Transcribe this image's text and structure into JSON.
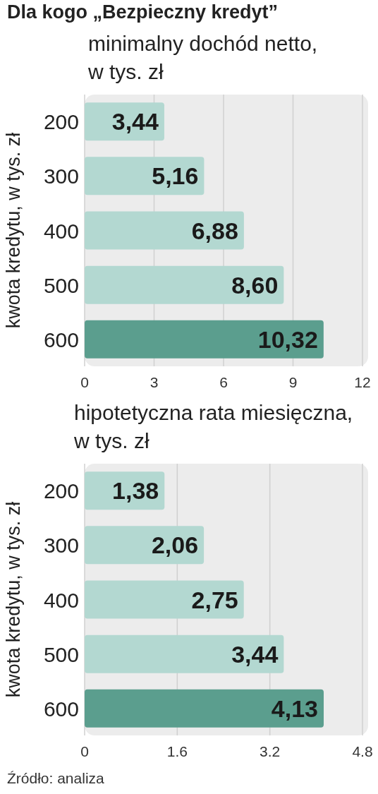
{
  "chart_data": [
    {
      "type": "bar",
      "orientation": "horizontal",
      "title": "Dla kogo „Bezpieczny kredyt”",
      "subtitle": "minimalny dochód netto,\nw tys. zł",
      "ylabel": "kwota kredytu, w tys. zł",
      "categories": [
        "200",
        "300",
        "400",
        "500",
        "600"
      ],
      "values": [
        3.44,
        5.16,
        6.88,
        8.6,
        10.32
      ],
      "value_labels": [
        "3,44",
        "5,16",
        "6,88",
        "8,60",
        "10,32"
      ],
      "colors": [
        "#b3d8d1",
        "#b3d8d1",
        "#b3d8d1",
        "#b3d8d1",
        "#5b9e8e"
      ],
      "xlim": [
        0,
        12
      ],
      "xticks": [
        0,
        3,
        6,
        9,
        12
      ],
      "grid": "x"
    },
    {
      "type": "bar",
      "orientation": "horizontal",
      "subtitle": "hipotetyczna rata miesięczna,\nw tys. zł",
      "ylabel": "kwota kredytu, w tys. zł",
      "categories": [
        "200",
        "300",
        "400",
        "500",
        "600"
      ],
      "values": [
        1.38,
        2.06,
        2.75,
        3.44,
        4.13
      ],
      "value_labels": [
        "1,38",
        "2,06",
        "2,75",
        "3,44",
        "4,13"
      ],
      "colors": [
        "#b3d8d1",
        "#b3d8d1",
        "#b3d8d1",
        "#b3d8d1",
        "#5b9e8e"
      ],
      "xlim": [
        0,
        4.8
      ],
      "xticks": [
        0,
        1.6,
        3.2,
        4.8
      ],
      "grid": "x",
      "annotations": [
        "Źródło: analiza"
      ]
    }
  ]
}
